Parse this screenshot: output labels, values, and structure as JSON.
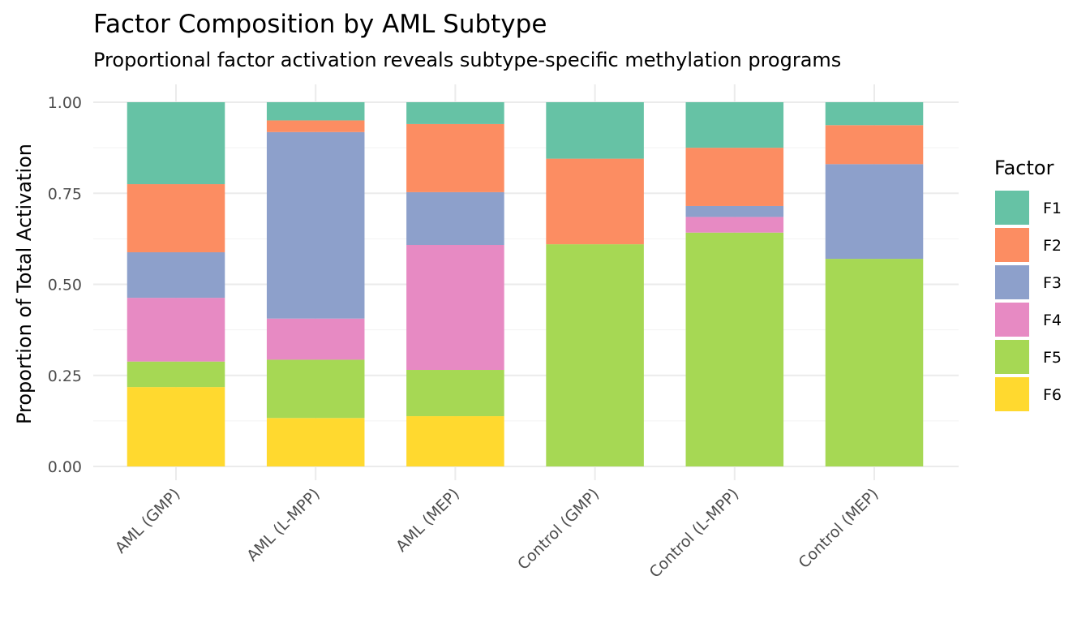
{
  "chart_data": {
    "type": "bar",
    "stacked": true,
    "title": "Factor Composition by AML Subtype",
    "subtitle": "Proportional factor activation reveals subtype-specific methylation programs",
    "xlabel": "",
    "ylabel": "Proportion of Total Activation",
    "ylim": [
      0,
      1
    ],
    "yticks": [
      "0.00",
      "0.25",
      "0.50",
      "0.75",
      "1.00"
    ],
    "grid": true,
    "legend_title": "Factor",
    "legend_position": "right",
    "categories": [
      "AML (GMP)",
      "AML (L-MPP)",
      "AML (MEP)",
      "Control (GMP)",
      "Control (L-MPP)",
      "Control (MEP)"
    ],
    "series": [
      {
        "name": "F1",
        "color": "#66C2A5",
        "values": [
          0.225,
          0.05,
          0.06,
          0.155,
          0.125,
          0.063
        ]
      },
      {
        "name": "F2",
        "color": "#FC8D62",
        "values": [
          0.187,
          0.032,
          0.187,
          0.235,
          0.16,
          0.107
        ]
      },
      {
        "name": "F3",
        "color": "#8DA0CB",
        "values": [
          0.125,
          0.512,
          0.145,
          0.0,
          0.03,
          0.26
        ]
      },
      {
        "name": "F4",
        "color": "#E78AC3",
        "values": [
          0.175,
          0.113,
          0.343,
          0.0,
          0.043,
          0.0
        ]
      },
      {
        "name": "F5",
        "color": "#A6D854",
        "values": [
          0.07,
          0.16,
          0.127,
          0.61,
          0.642,
          0.57
        ]
      },
      {
        "name": "F6",
        "color": "#FFD92F",
        "values": [
          0.218,
          0.133,
          0.138,
          0.0,
          0.0,
          0.0
        ]
      }
    ]
  }
}
